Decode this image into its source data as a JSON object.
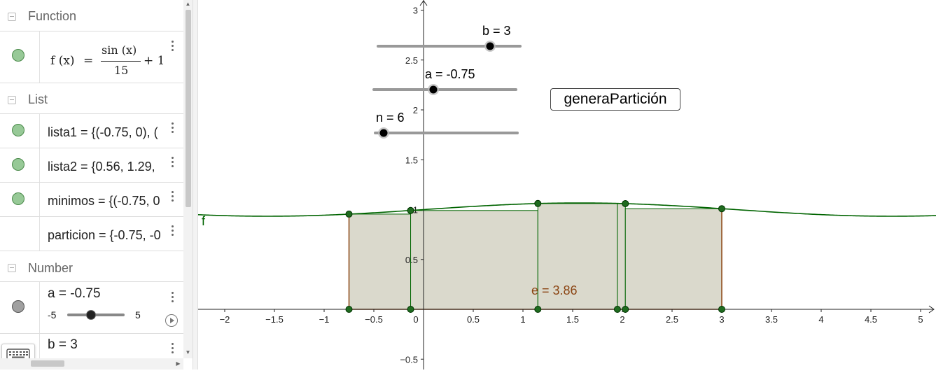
{
  "algebra": {
    "sections": {
      "function": "Function",
      "list": "List",
      "number": "Number"
    },
    "function_row": {
      "lhs": "f (x)",
      "eq": "=",
      "num": "sin (x)",
      "den": "15",
      "tail": "+ 1"
    },
    "list_rows": [
      {
        "text": "lista1 = {(-0.75, 0), ("
      },
      {
        "text": "lista2 = {0.56, 1.29,"
      },
      {
        "text": "minimos = {(-0.75, 0"
      },
      {
        "text": "particion = {-0.75, -0"
      }
    ],
    "number_rows": [
      {
        "text": "a = -0.75",
        "min": "-5",
        "max": "5",
        "value": -0.75
      },
      {
        "text": "b = 3"
      }
    ]
  },
  "graphics": {
    "sliders": {
      "b": {
        "label": "b = 3",
        "value": 3
      },
      "a": {
        "label": "a = -0.75",
        "value": -0.75
      },
      "n": {
        "label": "n = 6",
        "value": 6
      }
    },
    "button_label": "generaPartición",
    "curve_label": "f",
    "area_label": "e = 3.86",
    "x_ticks": [
      "−2",
      "−1.5",
      "−1",
      "−0.5",
      "0",
      "0.5",
      "1",
      "1.5",
      "2",
      "2.5",
      "3",
      "3.5",
      "4",
      "4.5",
      "5"
    ],
    "y_ticks": [
      "3",
      "2.5",
      "2",
      "1.5",
      "1",
      "0.5",
      "−0.5"
    ],
    "colors": {
      "curve": "#006400",
      "area": "#dad9cc",
      "area_border": "#8b4513",
      "label": "#8b4513"
    }
  },
  "chart_data": {
    "type": "area",
    "function": "sin(x)/15 + 1",
    "xlim": [
      -2.3,
      5.1
    ],
    "ylim": [
      -0.55,
      3.1
    ],
    "x_ticks": [
      -2,
      -1.5,
      -1,
      -0.5,
      0,
      0.5,
      1,
      1.5,
      2,
      2.5,
      3,
      3.5,
      4,
      4.5,
      5
    ],
    "y_ticks": [
      -0.5,
      0.5,
      1,
      1.5,
      2,
      2.5,
      3
    ],
    "partition_points": [
      -0.75,
      -0.13,
      1.15,
      1.95,
      2.03,
      3
    ],
    "curve_points": [
      [
        -0.75,
        0.955
      ],
      [
        -0.13,
        0.991
      ],
      [
        1.15,
        1.061
      ],
      [
        2.03,
        1.06
      ],
      [
        3,
        1.009
      ]
    ],
    "rectangles": [
      {
        "x0": -0.75,
        "x1": -0.13,
        "h": 0.955
      },
      {
        "x0": -0.13,
        "x1": 1.15,
        "h": 0.991
      },
      {
        "x0": 1.15,
        "x1": 1.95,
        "h": 1.061
      },
      {
        "x0": 1.95,
        "x1": 2.03,
        "h": 1.06
      },
      {
        "x0": 2.03,
        "x1": 3,
        "h": 1.009
      }
    ],
    "annotation": "e = 3.86"
  }
}
